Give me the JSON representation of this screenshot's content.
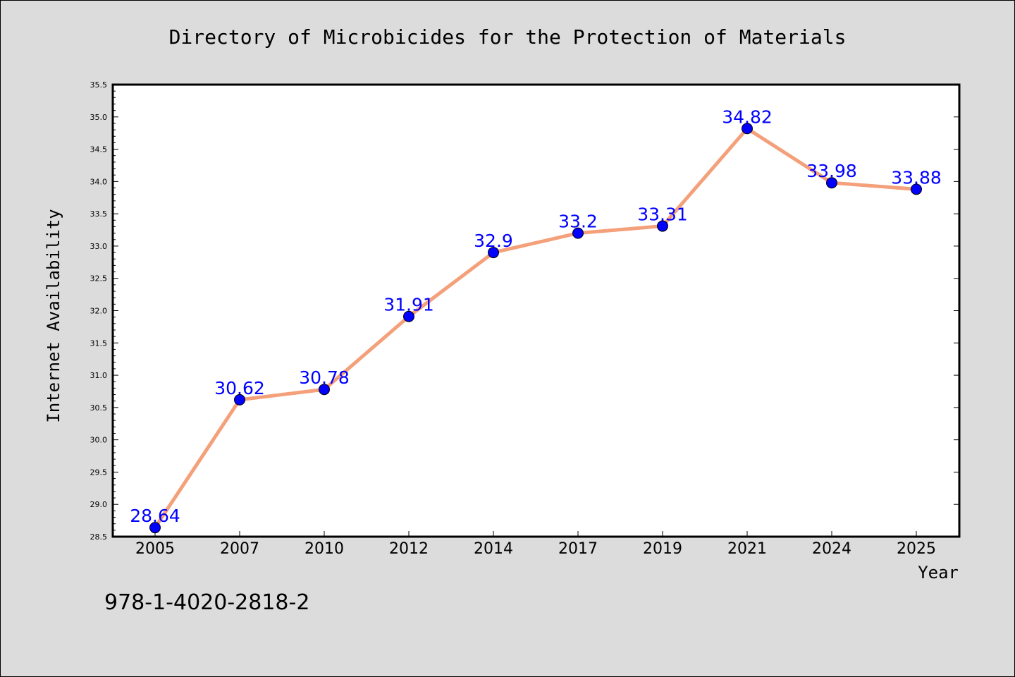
{
  "chart_data": {
    "type": "line",
    "title": "Directory of Microbicides for the Protection of Materials",
    "xlabel": "Year",
    "ylabel": "Internet Availability",
    "categories": [
      "2005",
      "2007",
      "2010",
      "2012",
      "2014",
      "2017",
      "2019",
      "2021",
      "2024",
      "2025"
    ],
    "series": [
      {
        "values": [
          28.64,
          30.62,
          30.78,
          31.91,
          32.9,
          33.2,
          33.31,
          34.82,
          33.98,
          33.88
        ]
      }
    ],
    "data_labels": [
      "28.64",
      "30.62",
      "30.78",
      "31.91",
      "32.9",
      "33.2",
      "33.31",
      "34.82",
      "33.98",
      "33.88"
    ],
    "ylim": [
      28.5,
      35.5
    ],
    "yticks": [
      "28.5",
      "29.0",
      "29.5",
      "30.0",
      "30.5",
      "31.0",
      "31.5",
      "32.0",
      "32.5",
      "33.0",
      "33.5",
      "34.0",
      "34.5",
      "35.0",
      "35.5"
    ],
    "grid": false,
    "colors": {
      "line": "#f4a07a",
      "marker": "#0000ff",
      "marker_edge": "#000000",
      "label": "#0000ff",
      "plot_bg": "#ffffff",
      "page_bg": "#dcdcdc"
    }
  },
  "footnote": "978-1-4020-2818-2"
}
